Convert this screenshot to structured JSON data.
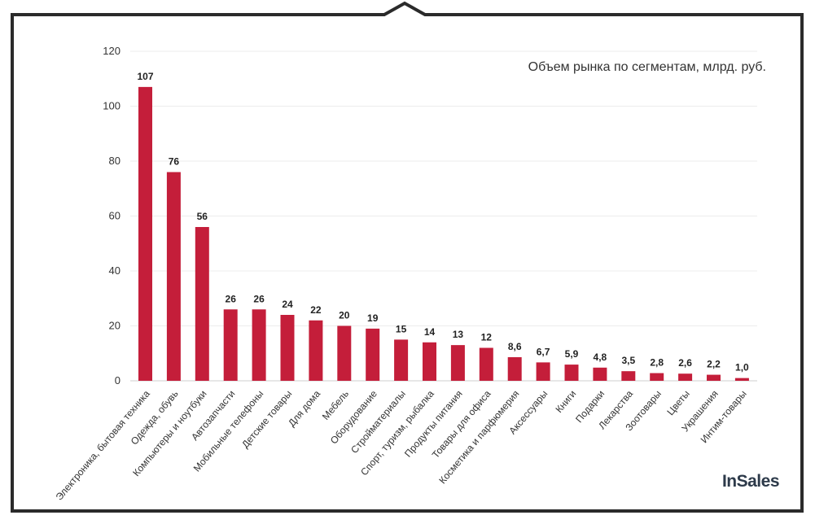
{
  "chart_data": {
    "type": "bar",
    "title": "Объем рынка по сегментам, млрд. руб.",
    "categories": [
      "Электроника, бытовая техника",
      "Одежда, обувь",
      "Компьютеры и ноутбуки",
      "Автозапчасти",
      "Мобильные телефоны",
      "Детские товары",
      "Для дома",
      "Мебель",
      "Оборудование",
      "Стройматериалы",
      "Спорт, туризм, рыбалка",
      "Продукты питания",
      "Товары для офиса",
      "Косметика и парфюмерия",
      "Аксессуары",
      "Книги",
      "Подарки",
      "Лекарства",
      "Зоотовары",
      "Цветы",
      "Украшения",
      "Интим-товары"
    ],
    "values": [
      107,
      76,
      56,
      26,
      26,
      24,
      22,
      20,
      19,
      15,
      14,
      13,
      12,
      8.6,
      6.7,
      5.9,
      4.8,
      3.5,
      2.8,
      2.6,
      2.2,
      1.0
    ],
    "value_labels": [
      "107",
      "76",
      "56",
      "26",
      "26",
      "24",
      "22",
      "20",
      "19",
      "15",
      "14",
      "13",
      "12",
      "8,6",
      "6,7",
      "5,9",
      "4,8",
      "3,5",
      "2,8",
      "2,6",
      "2,2",
      "1,0"
    ],
    "yticks": [
      0,
      20,
      40,
      60,
      80,
      100,
      120
    ],
    "ylim": [
      0,
      120
    ],
    "grid": true,
    "legend": "none",
    "bar_color": "#c41e3a",
    "xlabel": "",
    "ylabel": ""
  },
  "brand": "InSales"
}
